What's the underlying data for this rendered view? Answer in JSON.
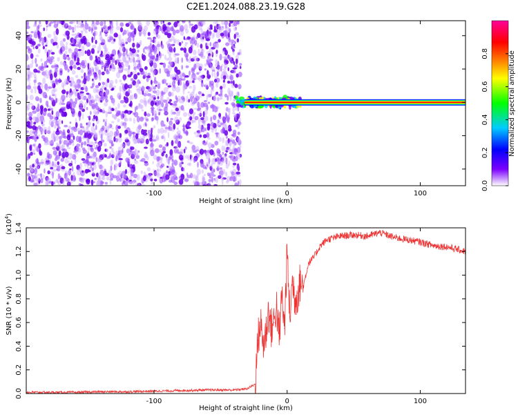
{
  "title": "C2E1.2024.088.23.19.G28",
  "chart_data": [
    {
      "type": "heatmap",
      "xlabel": "Height of straight line (km)",
      "ylabel": "Frequency (Hz)",
      "xlim": [
        -196,
        134
      ],
      "ylim": [
        -50,
        49
      ],
      "x_ticks": [
        -100,
        0,
        100
      ],
      "x_tick_labels": [
        "-100",
        "0",
        "100"
      ],
      "y_ticks": [
        -40,
        -20,
        0,
        20,
        40
      ],
      "y_tick_labels": [
        "-40",
        "-20",
        "0",
        "20",
        "40"
      ],
      "noise_region_x": [
        -196,
        -38
      ],
      "transition_region_x": [
        -38,
        10
      ],
      "signal_line_frequency": 0,
      "colorbar": {
        "label": "Normalized spectral amplitude",
        "range": [
          0,
          1
        ],
        "ticks": [
          0.0,
          0.2,
          0.4,
          0.6,
          0.8
        ],
        "tick_labels": [
          "0.0",
          "0.2",
          "0.4",
          "0.6",
          "0.8"
        ],
        "colors": [
          "#ffffff",
          "#7b00ff",
          "#0000ff",
          "#00ccff",
          "#00ff00",
          "#ffff00",
          "#ff8800",
          "#ff0000",
          "#ff0099"
        ]
      },
      "grid": false
    },
    {
      "type": "line",
      "xlabel": "Height of straight line (km)",
      "ylabel": "SNR (10 * v/v)",
      "y_multiplier_label": "(x10",
      "y_multiplier_exp": "4",
      "xlim": [
        -196,
        134
      ],
      "ylim": [
        0,
        1.4
      ],
      "x_ticks": [
        -100,
        0,
        100
      ],
      "x_tick_labels": [
        "-100",
        "0",
        "100"
      ],
      "y_ticks": [
        0.0,
        0.2,
        0.4,
        0.6,
        0.8,
        1.0,
        1.2,
        1.4
      ],
      "y_tick_labels": [
        "0.0",
        "0.2",
        "0.4",
        "0.6",
        "0.8",
        "1.0",
        "1.2",
        "1.4"
      ],
      "line_color": "#ee3333",
      "series": [
        {
          "x": [
            -196,
            -180,
            -160,
            -140,
            -120,
            -100,
            -80,
            -60,
            -40,
            -30,
            -24,
            -22,
            -20,
            -18,
            -16,
            -14,
            -12,
            -10,
            -8,
            -6,
            -4,
            -2,
            0,
            2,
            4,
            6,
            8,
            10,
            12,
            14,
            16,
            20,
            25,
            30,
            40,
            50,
            60,
            70,
            80,
            90,
            100,
            110,
            120,
            134
          ],
          "y": [
            0.01,
            0.01,
            0.01,
            0.015,
            0.015,
            0.02,
            0.025,
            0.03,
            0.03,
            0.04,
            0.08,
            0.45,
            0.6,
            0.42,
            0.5,
            0.7,
            0.55,
            0.6,
            0.75,
            0.45,
            0.85,
            0.55,
            1.2,
            0.65,
            0.95,
            0.8,
            0.85,
            0.95,
            0.9,
            1.0,
            1.1,
            1.15,
            1.25,
            1.3,
            1.33,
            1.34,
            1.33,
            1.36,
            1.32,
            1.3,
            1.28,
            1.25,
            1.24,
            1.2
          ]
        }
      ],
      "grid": false
    }
  ]
}
